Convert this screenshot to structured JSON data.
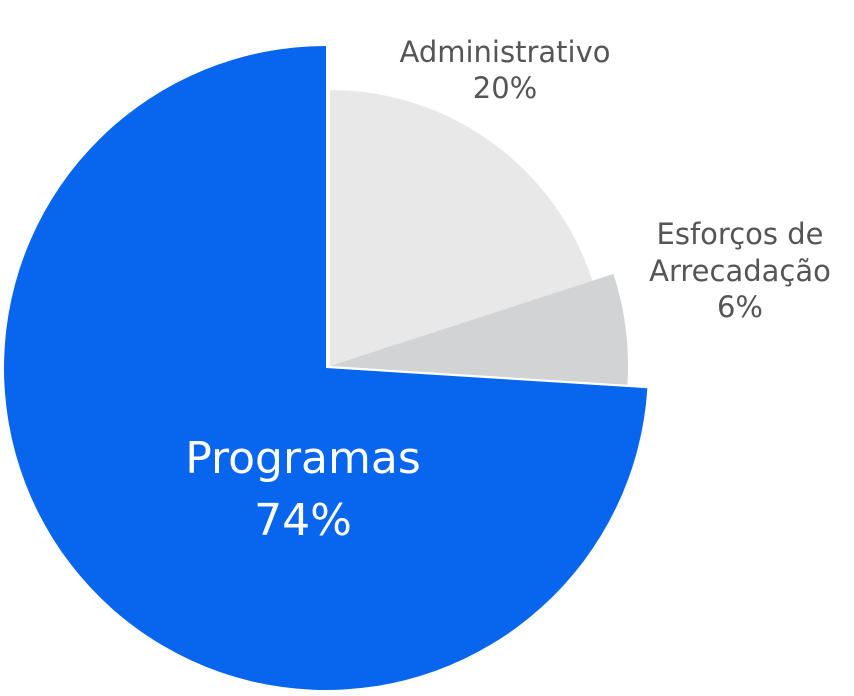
{
  "chart_data": {
    "type": "pie",
    "title": "",
    "slices": [
      {
        "label": "Administrativo",
        "percent_label": "20%",
        "value": 20,
        "color": "#e8e8e8",
        "label_color": "#555555"
      },
      {
        "label": "Esforços de Arrecadação",
        "label_lines": [
          "Esforços de",
          "Arrecadação"
        ],
        "percent_label": "6%",
        "value": 6,
        "color": "#d2d3d5",
        "label_color": "#555555"
      },
      {
        "label": "Programas",
        "percent_label": "74%",
        "value": 74,
        "color": "#0865ee",
        "label_color": "#ffffff"
      }
    ],
    "legend": "none",
    "exploded_slice": "Programas"
  }
}
